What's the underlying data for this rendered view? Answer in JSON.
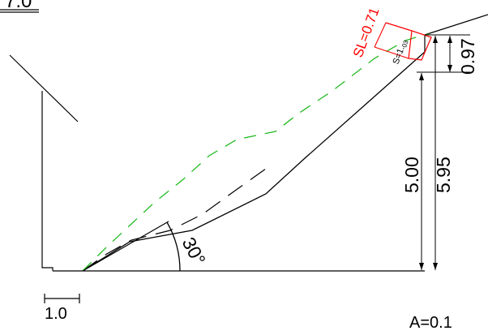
{
  "labels": {
    "title_partial": "7.0",
    "angle": "30°",
    "height_lower": "5.00",
    "height_total": "5.95",
    "height_top": "0.97",
    "safety_red": "SL=0.71",
    "safety_black_prefix": "S=1.",
    "safety_black_suffix": "03",
    "scale_bar": "1.0",
    "coefficient": "A=0.1"
  },
  "colors": {
    "line": "#000000",
    "slip_circle": "#22bb22",
    "failure_block": "#ff0000"
  }
}
